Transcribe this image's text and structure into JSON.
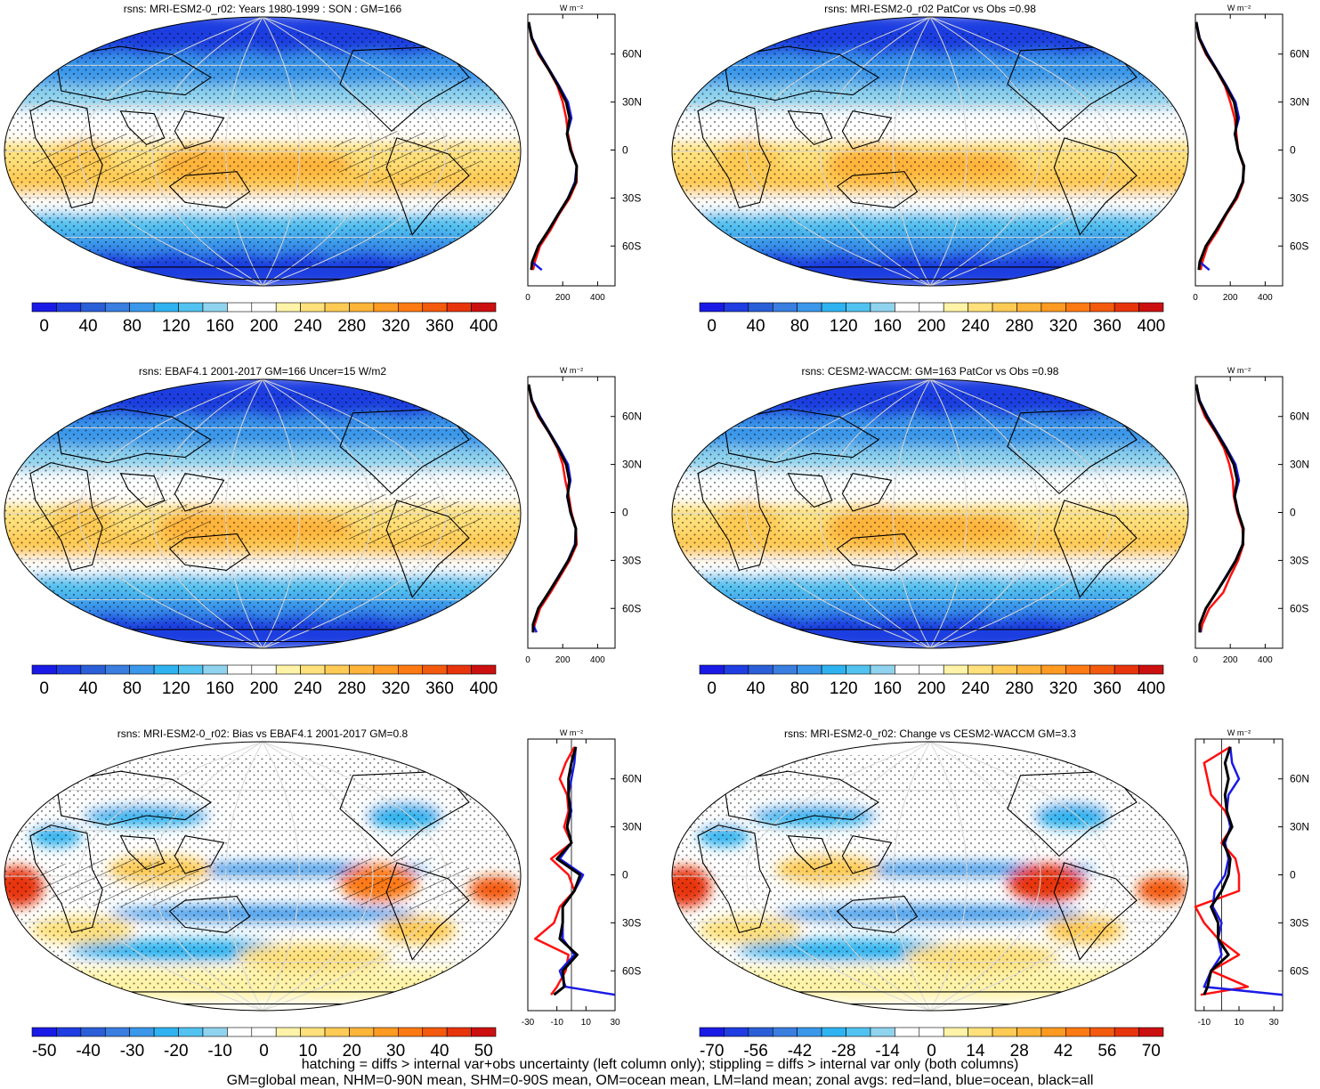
{
  "colors": {
    "diverging_scale": [
      "#1a1ae6",
      "#1f3de0",
      "#2b5fd8",
      "#3a7ee0",
      "#3a97ea",
      "#2fb3f0",
      "#52c2f0",
      "#8fd3ee",
      "#ffffff",
      "#ffffff",
      "#fff3a8",
      "#ffe07a",
      "#ffcb55",
      "#ffb43a",
      "#ff9a22",
      "#ff7a12",
      "#f45a0d",
      "#e8340c",
      "#cc1010"
    ],
    "land_line": "#ff1010",
    "ocean_line": "#1a1ae6",
    "all_line": "#000000",
    "coast": "#000000",
    "graticule": "#d8d8d8"
  },
  "footer": {
    "line1": "hatching = diffs > internal var+obs uncertainty (left column only); stippling = diffs > internal var only (both columns)",
    "line2": "GM=global mean, NHM=0-90N mean, SHM=0-90S mean, OM=ocean mean, LM=land mean; zonal avgs: red=land, blue=ocean, black=all"
  },
  "chart_data": [
    {
      "type": "heatmap",
      "title": "rsns: MRI-ESM2-0_r02: Years 1980-1999 : SON : GM=166",
      "colorbar_ticks": [
        "0",
        "40",
        "80",
        "120",
        "160",
        "200",
        "240",
        "280",
        "320",
        "360",
        "400"
      ],
      "field": "absolute",
      "hatching": true,
      "stippling": true,
      "zonal_profile": {
        "unit_label": "W m⁻²",
        "x_ticks": [
          "0",
          "200",
          "400"
        ],
        "xlim": [
          0,
          500
        ],
        "y_ticks": [
          "60N",
          "30N",
          "0",
          "30S",
          "60S"
        ],
        "lat": [
          80,
          70,
          60,
          50,
          40,
          30,
          20,
          10,
          0,
          -10,
          -20,
          -30,
          -40,
          -50,
          -60,
          -70,
          -75
        ],
        "land": [
          5,
          20,
          60,
          120,
          170,
          200,
          220,
          230,
          250,
          280,
          280,
          240,
          180,
          130,
          70,
          40,
          30
        ],
        "ocean": [
          5,
          25,
          70,
          125,
          180,
          230,
          250,
          225,
          245,
          280,
          270,
          230,
          175,
          120,
          60,
          25,
          80
        ],
        "all": [
          5,
          22,
          65,
          122,
          175,
          220,
          240,
          225,
          245,
          280,
          275,
          232,
          175,
          120,
          60,
          25,
          20
        ]
      }
    },
    {
      "type": "heatmap",
      "title": "rsns: MRI-ESM2-0_r02 PatCor vs Obs =0.98",
      "colorbar_ticks": [
        "0",
        "40",
        "80",
        "120",
        "160",
        "200",
        "240",
        "280",
        "320",
        "360",
        "400"
      ],
      "field": "absolute",
      "hatching": false,
      "stippling": true,
      "zonal_profile": {
        "unit_label": "W m⁻²",
        "x_ticks": [
          "0",
          "200",
          "400"
        ],
        "xlim": [
          0,
          500
        ],
        "y_ticks": [
          "60N",
          "30N",
          "0",
          "30S",
          "60S"
        ],
        "lat": [
          80,
          70,
          60,
          50,
          40,
          30,
          20,
          10,
          0,
          -10,
          -20,
          -30,
          -40,
          -50,
          -60,
          -70,
          -75
        ],
        "land": [
          5,
          20,
          60,
          120,
          170,
          200,
          225,
          235,
          245,
          275,
          275,
          240,
          180,
          130,
          70,
          40,
          30
        ],
        "ocean": [
          5,
          25,
          70,
          125,
          180,
          230,
          250,
          225,
          245,
          280,
          270,
          230,
          175,
          120,
          60,
          25,
          80
        ],
        "all": [
          5,
          22,
          65,
          122,
          175,
          222,
          240,
          228,
          245,
          278,
          272,
          232,
          175,
          120,
          60,
          25,
          20
        ]
      }
    },
    {
      "type": "heatmap",
      "title": "rsns: EBAF4.1 2001-2017 GM=166 Uncer=15 W/m2",
      "colorbar_ticks": [
        "0",
        "40",
        "80",
        "120",
        "160",
        "200",
        "240",
        "280",
        "320",
        "360",
        "400"
      ],
      "field": "absolute",
      "hatching": true,
      "stippling": true,
      "zonal_profile": {
        "unit_label": "W m⁻²",
        "x_ticks": [
          "0",
          "200",
          "400"
        ],
        "xlim": [
          0,
          500
        ],
        "y_ticks": [
          "60N",
          "30N",
          "0",
          "30S",
          "60S"
        ],
        "lat": [
          80,
          70,
          60,
          50,
          40,
          30,
          20,
          10,
          0,
          -10,
          -20,
          -30,
          -40,
          -50,
          -60,
          -70,
          -75
        ],
        "land": [
          5,
          20,
          60,
          120,
          170,
          200,
          215,
          235,
          250,
          275,
          280,
          240,
          185,
          130,
          70,
          40,
          30
        ],
        "ocean": [
          5,
          25,
          70,
          125,
          180,
          230,
          245,
          225,
          245,
          275,
          270,
          230,
          175,
          120,
          60,
          30,
          50
        ],
        "all": [
          5,
          22,
          65,
          122,
          175,
          220,
          238,
          228,
          245,
          275,
          274,
          232,
          177,
          120,
          60,
          30,
          30
        ]
      }
    },
    {
      "type": "heatmap",
      "title": "rsns: CESM2-WACCM: GM=163 PatCor vs Obs =0.98",
      "colorbar_ticks": [
        "0",
        "40",
        "80",
        "120",
        "160",
        "200",
        "240",
        "280",
        "320",
        "360",
        "400"
      ],
      "field": "absolute",
      "hatching": false,
      "stippling": true,
      "zonal_profile": {
        "unit_label": "W m⁻²",
        "x_ticks": [
          "0",
          "200",
          "400"
        ],
        "xlim": [
          0,
          500
        ],
        "y_ticks": [
          "60N",
          "30N",
          "0",
          "30S",
          "60S"
        ],
        "lat": [
          80,
          70,
          60,
          50,
          40,
          30,
          20,
          10,
          0,
          -10,
          -20,
          -30,
          -40,
          -50,
          -60,
          -70,
          -75
        ],
        "land": [
          5,
          20,
          55,
          115,
          165,
          195,
          215,
          220,
          240,
          270,
          275,
          245,
          200,
          160,
          80,
          40,
          30
        ],
        "ocean": [
          5,
          25,
          70,
          125,
          180,
          230,
          250,
          225,
          245,
          275,
          270,
          230,
          175,
          120,
          60,
          25,
          30
        ],
        "all": [
          5,
          22,
          65,
          120,
          175,
          220,
          240,
          225,
          245,
          275,
          272,
          232,
          178,
          120,
          60,
          25,
          25
        ]
      }
    },
    {
      "type": "heatmap",
      "title": "rsns: MRI-ESM2-0_r02: Bias vs EBAF4.1 2001-2017  GM=0.8",
      "colorbar_ticks": [
        "-50",
        "-40",
        "-30",
        "-20",
        "-10",
        "0",
        "10",
        "20",
        "30",
        "40",
        "50"
      ],
      "field": "difference",
      "hatching": true,
      "stippling": true,
      "zonal_profile": {
        "unit_label": "W m⁻²",
        "x_ticks": [
          "-30",
          "-10",
          "10",
          "30"
        ],
        "xlim": [
          -30,
          30
        ],
        "y_ticks": [
          "60N",
          "30N",
          "0",
          "30S",
          "60S"
        ],
        "lat": [
          80,
          70,
          60,
          50,
          40,
          30,
          20,
          10,
          0,
          -10,
          -20,
          -30,
          -40,
          -50,
          -60,
          -70,
          -75
        ],
        "land": [
          2,
          -4,
          -8,
          -3,
          -2,
          -5,
          0,
          -14,
          -2,
          2,
          -8,
          -12,
          -25,
          -2,
          -4,
          -10,
          -14
        ],
        "ocean": [
          3,
          2,
          0,
          -2,
          0,
          -3,
          0,
          -8,
          8,
          2,
          -6,
          -6,
          -6,
          2,
          -8,
          -4,
          30
        ],
        "all": [
          3,
          0,
          -2,
          -2,
          -1,
          -3,
          0,
          -10,
          6,
          2,
          -6,
          -6,
          -8,
          4,
          -6,
          -5,
          -12
        ]
      }
    },
    {
      "type": "heatmap",
      "title": "rsns: MRI-ESM2-0_r02: Change vs CESM2-WACCM GM=3.3",
      "colorbar_ticks": [
        "-70",
        "-56",
        "-42",
        "-28",
        "-14",
        "0",
        "14",
        "28",
        "42",
        "56",
        "70"
      ],
      "field": "difference",
      "hatching": false,
      "stippling": true,
      "zonal_profile": {
        "unit_label": "W m⁻²",
        "x_ticks": [
          "-10",
          "10",
          "30"
        ],
        "xlim": [
          -15,
          35
        ],
        "y_ticks": [
          "60N",
          "30N",
          "0",
          "30S",
          "60S"
        ],
        "lat": [
          80,
          70,
          60,
          50,
          40,
          30,
          20,
          10,
          0,
          -10,
          -20,
          -30,
          -40,
          -50,
          -60,
          -70,
          -75
        ],
        "land": [
          5,
          -10,
          -8,
          -6,
          2,
          6,
          0,
          8,
          10,
          10,
          -15,
          -10,
          -2,
          10,
          -6,
          15,
          -12
        ],
        "ocean": [
          5,
          6,
          10,
          4,
          3,
          5,
          2,
          4,
          2,
          -4,
          -5,
          0,
          -2,
          0,
          -6,
          -10,
          35
        ],
        "all": [
          5,
          2,
          4,
          2,
          3,
          6,
          1,
          5,
          4,
          0,
          -6,
          -2,
          -2,
          4,
          -6,
          -8,
          -10
        ]
      }
    }
  ]
}
